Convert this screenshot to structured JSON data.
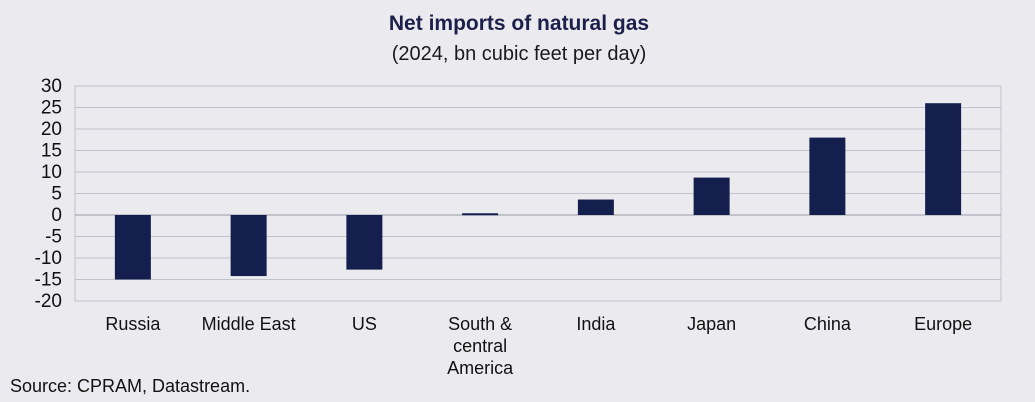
{
  "chart_data": {
    "type": "bar",
    "title": "Net imports of natural gas",
    "subtitle": "(2024, bn cubic feet per day)",
    "categories": [
      "Russia",
      "Middle East",
      "US",
      "South & central America",
      "India",
      "Japan",
      "China",
      "Europe"
    ],
    "category_lines": [
      [
        "Russia"
      ],
      [
        "Middle East"
      ],
      [
        "US"
      ],
      [
        "South &",
        "central",
        "America"
      ],
      [
        "India"
      ],
      [
        "Japan"
      ],
      [
        "China"
      ],
      [
        "Europe"
      ]
    ],
    "values": [
      -15,
      -14.2,
      -12.7,
      0.4,
      3.6,
      8.7,
      18,
      26
    ],
    "ylim": [
      -20,
      30
    ],
    "yticks": [
      30,
      25,
      20,
      15,
      10,
      5,
      0,
      -5,
      -10,
      -15,
      -20
    ],
    "xlabel": "",
    "ylabel": "",
    "grid": true,
    "legend": "none",
    "bar_color": "#141f4d",
    "source": "Source: CPRAM, Datastream."
  }
}
